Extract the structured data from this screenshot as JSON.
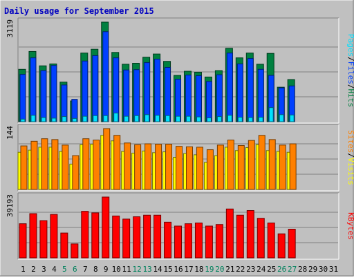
{
  "chart_data": {
    "type": "bar",
    "title": "Daily usage for September 2015",
    "colors": {
      "background": "#C0C0C0",
      "title": "#0000C0",
      "hits": "#008040",
      "files": "#0040FF",
      "pages": "#00E0FF",
      "visits": "#FFFF00",
      "sites": "#FF8000",
      "kbytes": "#FF0000",
      "weekend_label": "#00805C",
      "weekday_label": "#000000"
    },
    "days": [
      "1",
      "2",
      "3",
      "4",
      "5",
      "6",
      "7",
      "8",
      "9",
      "10",
      "11",
      "12",
      "13",
      "14",
      "15",
      "16",
      "17",
      "18",
      "19",
      "20",
      "21",
      "22",
      "23",
      "24",
      "25",
      "26",
      "27",
      "28",
      "29",
      "30",
      "31"
    ],
    "weekend_days": [
      "5",
      "6",
      "12",
      "13",
      "19",
      "20",
      "26",
      "27"
    ],
    "panels": [
      {
        "id": "hits-files-pages",
        "ymax_label": "3119",
        "ymax": 3119,
        "ylabel_parts": [
          "Pages",
          "/",
          "Files",
          "/",
          "Hits"
        ],
        "series": [
          {
            "name": "Hits",
            "values": [
              1640,
              2200,
              1750,
              1810,
              1240,
              650,
              2150,
              2270,
              3119,
              2170,
              1800,
              1830,
              2020,
              2120,
              1890,
              1450,
              1580,
              1550,
              1400,
              1600,
              2300,
              2000,
              2150,
              1800,
              2140,
              1080,
              1320,
              0,
              0,
              0,
              0
            ]
          },
          {
            "name": "Files",
            "values": [
              1480,
              2000,
              1600,
              1760,
              1150,
              700,
              1900,
              2070,
              2820,
              2000,
              1620,
              1630,
              1850,
              1960,
              1700,
              1330,
              1460,
              1440,
              1260,
              1470,
              2150,
              1810,
              1980,
              1640,
              1450,
              1060,
              1120,
              0,
              0,
              0,
              0
            ]
          },
          {
            "name": "Pages",
            "values": [
              80,
              200,
              130,
              110,
              160,
              100,
              170,
              190,
              190,
              270,
              170,
              190,
              220,
              200,
              190,
              170,
              170,
              150,
              120,
              160,
              200,
              140,
              130,
              140,
              440,
              220,
              210,
              0,
              0,
              0,
              0
            ]
          }
        ]
      },
      {
        "id": "visits-sites",
        "ymax_label": "144",
        "ymax": 144,
        "ylabel_parts": [
          "Sites",
          "/",
          "Visits"
        ],
        "series": [
          {
            "name": "Visits",
            "values": [
              88,
              93,
              100,
              100,
              90,
              60,
              106,
              107,
              128,
              115,
              90,
              86,
              91,
              87,
              89,
              76,
              85,
              82,
              64,
              80,
              100,
              92,
              99,
              106,
              92,
              90,
              88,
              0,
              0,
              0,
              0
            ]
          },
          {
            "name": "Sites",
            "values": [
              103,
              114,
              120,
              118,
              105,
              80,
              120,
              117,
              144,
              128,
              110,
              106,
              108,
              107,
              107,
              102,
              101,
              100,
              94,
              105,
              117,
              104,
              116,
              128,
              118,
              105,
              108,
              0,
              0,
              0,
              0
            ]
          }
        ]
      },
      {
        "id": "kbytes",
        "ymax_label": "39193",
        "ymax": 39193,
        "ylabel_parts": [
          "KBytes"
        ],
        "series": [
          {
            "name": "KBytes",
            "values": [
              22000,
              28500,
              24000,
              28000,
              16000,
              9000,
              30000,
              29000,
              39193,
              27000,
              25000,
              26500,
              27500,
              27500,
              23000,
              20500,
              22000,
              22500,
              20500,
              21500,
              31500,
              27500,
              30500,
              25500,
              22500,
              15500,
              18500,
              0,
              0,
              0,
              0
            ]
          }
        ]
      }
    ]
  }
}
